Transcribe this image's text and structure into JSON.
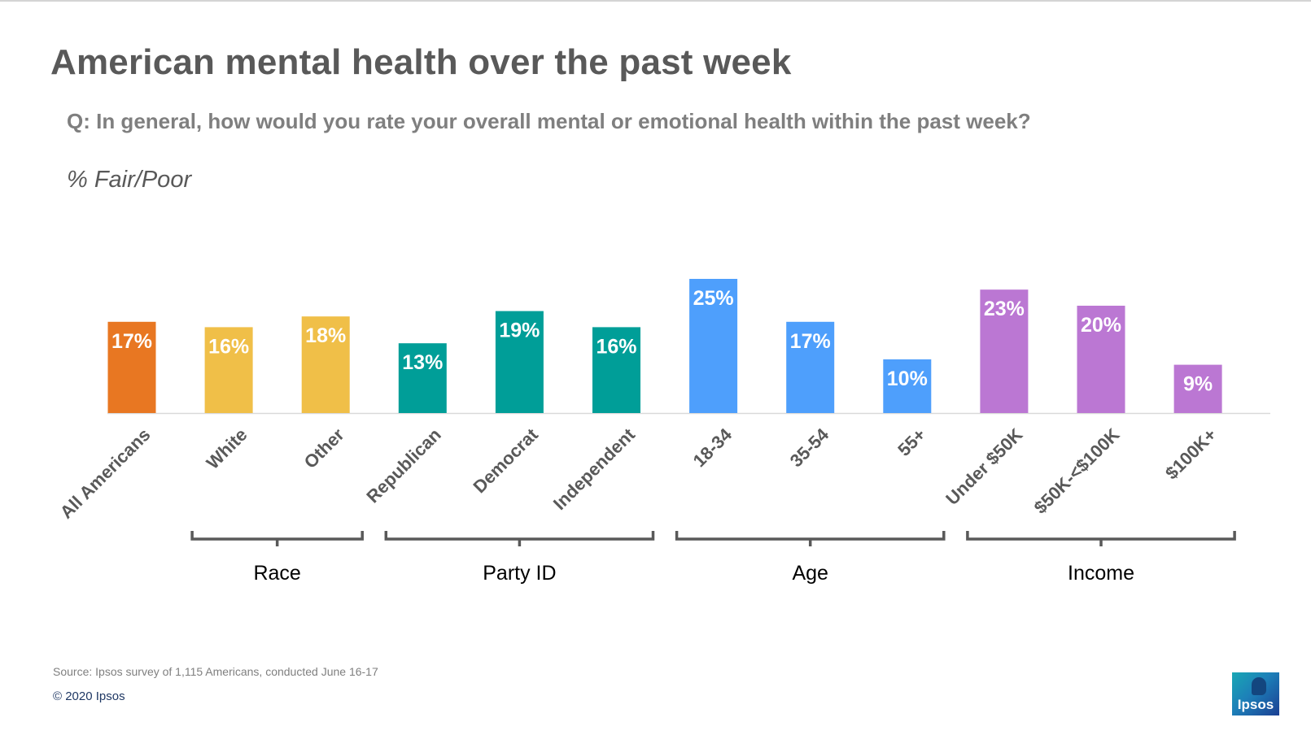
{
  "slide": {
    "title": "American mental health over the past week",
    "question": "Q: In general, how would you rate your overall mental or emotional health within the past week?",
    "measure_label": "% Fair/Poor",
    "source": "Source: Ipsos survey of 1,115 Americans, conducted June 16-17",
    "copyright": "© 2020 Ipsos",
    "logo_text": "Ipsos"
  },
  "chart_data": {
    "type": "bar",
    "categories": [
      "All Americans",
      "White",
      "Other",
      "Republican",
      "Democrat",
      "Independent",
      "18-34",
      "35-54",
      "55+",
      "Under $50K",
      "$50K-<$100K",
      "$100K+"
    ],
    "values": [
      17,
      16,
      18,
      13,
      19,
      16,
      25,
      17,
      10,
      23,
      20,
      9
    ],
    "value_labels": [
      "17%",
      "16%",
      "18%",
      "13%",
      "19%",
      "16%",
      "25%",
      "17%",
      "10%",
      "23%",
      "20%",
      "9%"
    ],
    "groups": [
      {
        "label": "Race",
        "categories": [
          "White",
          "Other"
        ]
      },
      {
        "label": "Party ID",
        "categories": [
          "Republican",
          "Democrat",
          "Independent"
        ]
      },
      {
        "label": "Age",
        "categories": [
          "18-34",
          "35-54",
          "55+"
        ]
      },
      {
        "label": "Income",
        "categories": [
          "Under $50K",
          "$50K-<$100K",
          "$100K+"
        ]
      }
    ],
    "colors": {
      "All Americans": "#e87722",
      "Race": "#f0bf48",
      "Party ID": "#009e98",
      "Age": "#4e9ffc",
      "Income": "#bb77d3"
    },
    "ylim": [
      0,
      25
    ],
    "grid": false,
    "legend": "none"
  }
}
